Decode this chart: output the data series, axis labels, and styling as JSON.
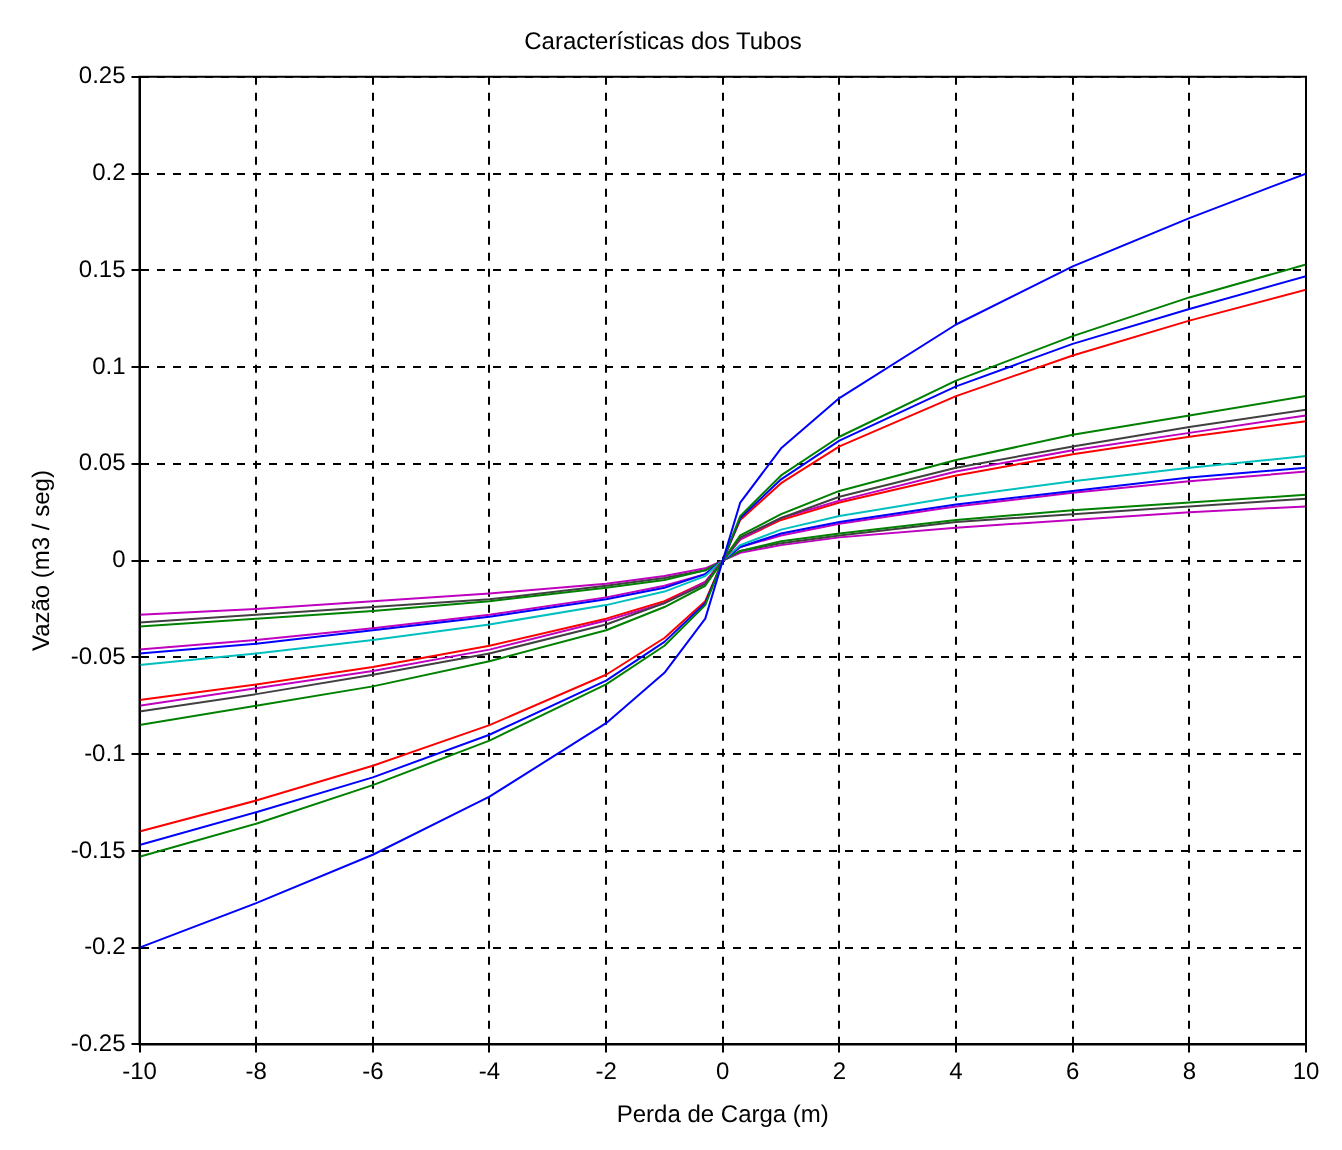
{
  "chart_data": {
    "type": "line",
    "title": "Características dos Tubos",
    "xlabel": "Perda de Carga (m)",
    "ylabel": "Vazão (m3 / seg)",
    "x": [
      -10,
      -8,
      -6,
      -4,
      -2,
      -1,
      -0.3,
      0,
      0.3,
      1,
      2,
      4,
      6,
      8,
      10
    ],
    "xlim": [
      -10,
      10
    ],
    "xticks": [
      -10,
      -8,
      -6,
      -4,
      -2,
      0,
      2,
      4,
      6,
      8,
      10
    ],
    "ylim": [
      -0.25,
      0.25
    ],
    "yticks": [
      -0.25,
      -0.2,
      -0.15,
      -0.1,
      -0.05,
      0,
      0.05,
      0.1,
      0.15,
      0.2,
      0.25
    ],
    "grid": true,
    "legend": false,
    "marker": "none",
    "line_style": "solid",
    "series": [
      {
        "color": "#0000ff",
        "values": [
          -0.2,
          -0.177,
          -0.152,
          -0.122,
          -0.084,
          -0.058,
          -0.03,
          0,
          0.03,
          0.058,
          0.084,
          0.122,
          0.152,
          0.177,
          0.2
        ]
      },
      {
        "color": "#008000",
        "values": [
          -0.153,
          -0.136,
          -0.116,
          -0.093,
          -0.064,
          -0.044,
          -0.023,
          0,
          0.023,
          0.044,
          0.064,
          0.093,
          0.116,
          0.136,
          0.153
        ]
      },
      {
        "color": "#0000ff",
        "values": [
          -0.147,
          -0.13,
          -0.112,
          -0.09,
          -0.062,
          -0.042,
          -0.022,
          0,
          0.022,
          0.042,
          0.062,
          0.09,
          0.112,
          0.13,
          0.147
        ]
      },
      {
        "color": "#ff0000",
        "values": [
          -0.14,
          -0.124,
          -0.106,
          -0.085,
          -0.059,
          -0.04,
          -0.021,
          0,
          0.021,
          0.04,
          0.059,
          0.085,
          0.106,
          0.124,
          0.14
        ]
      },
      {
        "color": "#008000",
        "values": [
          -0.085,
          -0.075,
          -0.065,
          -0.052,
          -0.036,
          -0.024,
          -0.013,
          0,
          0.013,
          0.024,
          0.036,
          0.052,
          0.065,
          0.075,
          0.085
        ]
      },
      {
        "color": "#404040",
        "values": [
          -0.078,
          -0.069,
          -0.059,
          -0.048,
          -0.033,
          -0.022,
          -0.012,
          0,
          0.012,
          0.022,
          0.033,
          0.048,
          0.059,
          0.069,
          0.078
        ]
      },
      {
        "color": "#bf00bf",
        "values": [
          -0.075,
          -0.066,
          -0.057,
          -0.046,
          -0.031,
          -0.022,
          -0.011,
          0,
          0.011,
          0.022,
          0.031,
          0.046,
          0.057,
          0.066,
          0.075
        ]
      },
      {
        "color": "#ff0000",
        "values": [
          -0.072,
          -0.064,
          -0.055,
          -0.044,
          -0.03,
          -0.021,
          -0.011,
          0,
          0.011,
          0.021,
          0.03,
          0.044,
          0.055,
          0.064,
          0.072
        ]
      },
      {
        "color": "#00bfbf",
        "values": [
          -0.054,
          -0.048,
          -0.041,
          -0.033,
          -0.023,
          -0.016,
          -0.008,
          0,
          0.008,
          0.016,
          0.023,
          0.033,
          0.041,
          0.048,
          0.054
        ]
      },
      {
        "color": "#0000ff",
        "values": [
          -0.048,
          -0.043,
          -0.036,
          -0.029,
          -0.02,
          -0.014,
          -0.007,
          0,
          0.007,
          0.014,
          0.02,
          0.029,
          0.036,
          0.043,
          0.048
        ]
      },
      {
        "color": "#bf00bf",
        "values": [
          -0.046,
          -0.041,
          -0.035,
          -0.028,
          -0.019,
          -0.013,
          -0.007,
          0,
          0.007,
          0.013,
          0.019,
          0.028,
          0.035,
          0.041,
          0.046
        ]
      },
      {
        "color": "#008000",
        "values": [
          -0.034,
          -0.03,
          -0.026,
          -0.021,
          -0.014,
          -0.01,
          -0.005,
          0,
          0.005,
          0.01,
          0.014,
          0.021,
          0.026,
          0.03,
          0.034
        ]
      },
      {
        "color": "#404040",
        "values": [
          -0.032,
          -0.028,
          -0.024,
          -0.02,
          -0.013,
          -0.009,
          -0.005,
          0,
          0.005,
          0.009,
          0.013,
          0.02,
          0.024,
          0.028,
          0.032
        ]
      },
      {
        "color": "#bf00bf",
        "values": [
          -0.028,
          -0.025,
          -0.021,
          -0.017,
          -0.012,
          -0.008,
          -0.004,
          0,
          0.004,
          0.008,
          0.012,
          0.017,
          0.021,
          0.025,
          0.028
        ]
      }
    ]
  }
}
